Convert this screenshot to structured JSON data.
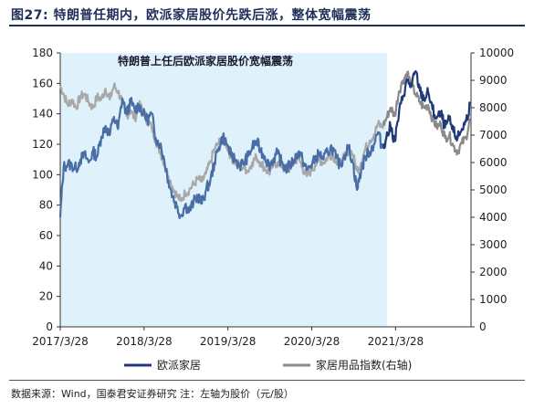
{
  "figure": {
    "title": "图27:  特朗普任期内，欧派家居股价先跌后涨，整体宽幅震荡",
    "source": "数据来源：Wind，国泰君安证券研究    注：左轴为股价（元/股）"
  },
  "chart_data": {
    "type": "line",
    "title": "",
    "xlabel": "",
    "ylabel": "",
    "x_tick_labels": [
      "2017/3/28",
      "2018/3/28",
      "2019/3/28",
      "2020/3/28",
      "2021/3/28"
    ],
    "x_ticks": [
      2017.24,
      2018.24,
      2019.24,
      2020.24,
      2021.24
    ],
    "xlim": [
      2017.24,
      2022.14
    ],
    "ylim_left": [
      0,
      180
    ],
    "y_ticks_left": [
      0,
      20,
      40,
      60,
      80,
      100,
      120,
      140,
      160,
      180
    ],
    "ylim_right": [
      0,
      10000
    ],
    "y_ticks_right": [
      0,
      1000,
      2000,
      3000,
      4000,
      5000,
      6000,
      7000,
      8000,
      9000,
      10000
    ],
    "shaded_period": {
      "start": 2017.24,
      "end": 2021.14
    },
    "annotation": "特朗普上任后欧派家居股价宽幅震荡",
    "legend_position": "bottom",
    "colors": {
      "shade": "#dff2fb",
      "stock": "#4a6da5",
      "stock_after": "#1f3a78",
      "index": "#a8a8a8",
      "index_after": "#8a8a8a"
    },
    "series": [
      {
        "name": "欧派家居",
        "axis": "left",
        "x": [
          2017.24,
          2017.28,
          2017.33,
          2017.38,
          2017.43,
          2017.48,
          2017.53,
          2017.58,
          2017.63,
          2017.68,
          2017.73,
          2017.78,
          2017.83,
          2017.88,
          2017.93,
          2017.98,
          2018.03,
          2018.08,
          2018.13,
          2018.18,
          2018.23,
          2018.28,
          2018.33,
          2018.38,
          2018.43,
          2018.48,
          2018.53,
          2018.58,
          2018.63,
          2018.68,
          2018.73,
          2018.78,
          2018.83,
          2018.88,
          2018.93,
          2018.98,
          2019.03,
          2019.08,
          2019.13,
          2019.18,
          2019.23,
          2019.28,
          2019.33,
          2019.38,
          2019.43,
          2019.48,
          2019.53,
          2019.58,
          2019.63,
          2019.68,
          2019.73,
          2019.78,
          2019.83,
          2019.88,
          2019.93,
          2019.98,
          2020.03,
          2020.08,
          2020.13,
          2020.18,
          2020.23,
          2020.28,
          2020.33,
          2020.38,
          2020.43,
          2020.48,
          2020.53,
          2020.58,
          2020.63,
          2020.68,
          2020.73,
          2020.78,
          2020.83,
          2020.88,
          2020.93,
          2020.98,
          2021.03,
          2021.08,
          2021.13,
          2021.18,
          2021.23,
          2021.28,
          2021.33,
          2021.38,
          2021.43,
          2021.48,
          2021.53,
          2021.58,
          2021.63,
          2021.68,
          2021.73,
          2021.78,
          2021.83,
          2021.88,
          2021.93,
          2021.98,
          2022.03,
          2022.08,
          2022.13
        ],
        "values": [
          72,
          105,
          107,
          106,
          104,
          110,
          113,
          108,
          115,
          112,
          125,
          132,
          126,
          138,
          130,
          150,
          140,
          148,
          142,
          146,
          140,
          136,
          140,
          124,
          120,
          110,
          96,
          86,
          79,
          73,
          80,
          76,
          82,
          86,
          81,
          90,
          96,
          108,
          118,
          125,
          120,
          112,
          110,
          106,
          108,
          112,
          118,
          122,
          116,
          112,
          106,
          110,
          114,
          108,
          104,
          106,
          110,
          115,
          110,
          103,
          106,
          110,
          114,
          110,
          115,
          118,
          111,
          106,
          113,
          118,
          108,
          90,
          103,
          112,
          115,
          120,
          128,
          118,
          124,
          132,
          122,
          140,
          152,
          162,
          158,
          168,
          155,
          150,
          154,
          143,
          137,
          140,
          131,
          136,
          128,
          124,
          130,
          135,
          147
        ]
      },
      {
        "name": "家居用品指数(右轴)",
        "axis": "right",
        "x": [
          2017.24,
          2017.28,
          2017.33,
          2017.38,
          2017.43,
          2017.48,
          2017.53,
          2017.58,
          2017.63,
          2017.68,
          2017.73,
          2017.78,
          2017.83,
          2017.88,
          2017.93,
          2017.98,
          2018.03,
          2018.08,
          2018.13,
          2018.18,
          2018.23,
          2018.28,
          2018.33,
          2018.38,
          2018.43,
          2018.48,
          2018.53,
          2018.58,
          2018.63,
          2018.68,
          2018.73,
          2018.78,
          2018.83,
          2018.88,
          2018.93,
          2018.98,
          2019.03,
          2019.08,
          2019.13,
          2019.18,
          2019.23,
          2019.28,
          2019.33,
          2019.38,
          2019.43,
          2019.48,
          2019.53,
          2019.58,
          2019.63,
          2019.68,
          2019.73,
          2019.78,
          2019.83,
          2019.88,
          2019.93,
          2019.98,
          2020.03,
          2020.08,
          2020.13,
          2020.18,
          2020.23,
          2020.28,
          2020.33,
          2020.38,
          2020.43,
          2020.48,
          2020.53,
          2020.58,
          2020.63,
          2020.68,
          2020.73,
          2020.78,
          2020.83,
          2020.88,
          2020.93,
          2020.98,
          2021.03,
          2021.08,
          2021.13,
          2021.18,
          2021.23,
          2021.28,
          2021.33,
          2021.38,
          2021.43,
          2021.48,
          2021.53,
          2021.58,
          2021.63,
          2021.68,
          2021.73,
          2021.78,
          2021.83,
          2021.88,
          2021.93,
          2021.98,
          2022.03,
          2022.08,
          2022.13
        ],
        "values": [
          8800,
          8500,
          8100,
          8300,
          8000,
          8400,
          8500,
          8200,
          8000,
          8400,
          8300,
          8700,
          8300,
          8800,
          8600,
          8200,
          7700,
          7900,
          7600,
          8100,
          7900,
          7500,
          7300,
          6800,
          6400,
          6000,
          5500,
          5100,
          4800,
          4600,
          4900,
          5000,
          5200,
          5400,
          5300,
          5600,
          6000,
          6500,
          6700,
          6900,
          6600,
          6200,
          6000,
          5900,
          5800,
          5700,
          6000,
          6200,
          6000,
          5800,
          5600,
          5900,
          6000,
          5900,
          5700,
          5800,
          6000,
          6200,
          5800,
          5500,
          5700,
          5900,
          6100,
          6000,
          6200,
          6300,
          6100,
          5900,
          6200,
          6500,
          6300,
          5700,
          6000,
          6500,
          6800,
          7000,
          7400,
          7300,
          7600,
          8000,
          7700,
          8600,
          9000,
          9300,
          8800,
          8500,
          8200,
          8000,
          8100,
          7600,
          7300,
          7400,
          6900,
          7000,
          6600,
          6400,
          6700,
          6900,
          7600
        ]
      }
    ]
  }
}
